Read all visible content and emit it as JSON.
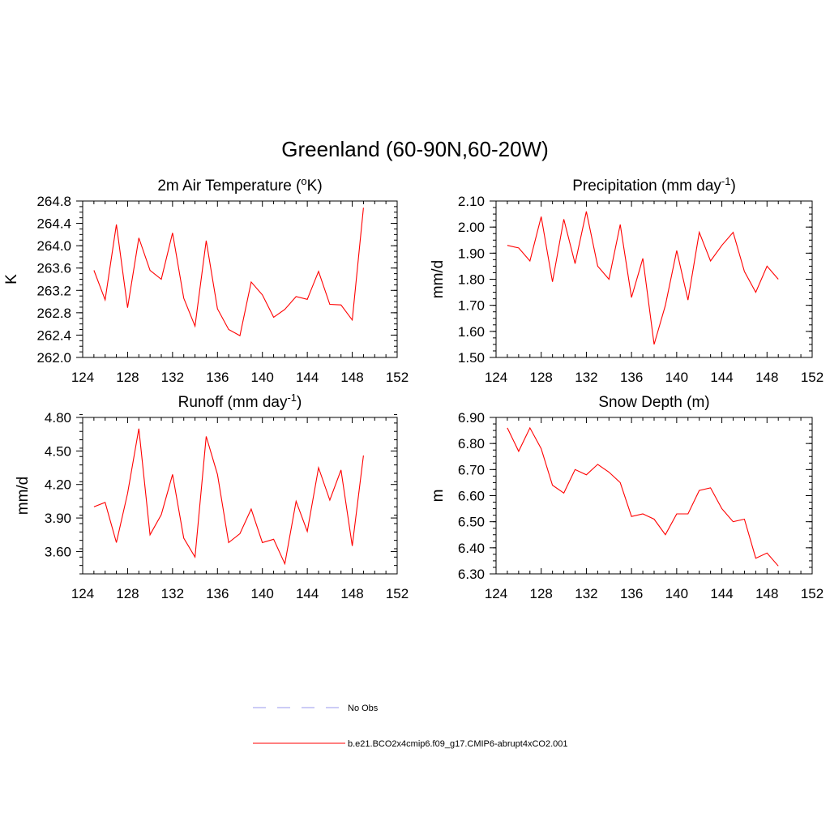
{
  "figure_title": "Greenland (60-90N,60-20W)",
  "legend": [
    {
      "label": "No Obs",
      "color": "#9999ee",
      "dash": true
    },
    {
      "label": "b.e21.BCO2x4cmip6.f09_g17.CMIP6-abrupt4xCO2.001",
      "color": "#ff0000",
      "dash": false
    }
  ],
  "chart_data": [
    {
      "type": "line",
      "title": "2m Air Temperature (",
      "title_sup": "o",
      "title_tail": "K)",
      "ylabel": "K",
      "xlim": [
        124,
        152
      ],
      "ylim": [
        262.0,
        264.8
      ],
      "xticks": [
        124,
        128,
        132,
        136,
        140,
        144,
        148,
        152
      ],
      "xticklabels": [
        "124",
        "128",
        "132",
        "136",
        "140",
        "144",
        "148",
        "152"
      ],
      "yticks": [
        262.0,
        262.4,
        262.8,
        263.2,
        263.6,
        264.0,
        264.4,
        264.8
      ],
      "yticklabels": [
        "262.0",
        "262.4",
        "262.8",
        "263.2",
        "263.6",
        "264.0",
        "264.4",
        "264.8"
      ],
      "yminor_step": 0.1,
      "color": "#ff0000",
      "x": [
        125,
        126,
        127,
        128,
        129,
        130,
        131,
        132,
        133,
        134,
        135,
        136,
        137,
        138,
        139,
        140,
        141,
        142,
        143,
        144,
        145,
        146,
        147,
        148,
        149
      ],
      "y": [
        263.56,
        263.03,
        264.38,
        262.89,
        264.14,
        263.56,
        263.4,
        264.23,
        263.06,
        262.56,
        264.09,
        262.87,
        262.5,
        262.39,
        263.35,
        263.12,
        262.72,
        262.86,
        263.09,
        263.04,
        263.54,
        262.95,
        262.94,
        262.67,
        264.68
      ]
    },
    {
      "type": "line",
      "title": "Precipitation (mm day",
      "title_sup": "-1",
      "title_tail": ")",
      "ylabel": "mm/d",
      "xlim": [
        124,
        152
      ],
      "ylim": [
        1.5,
        2.1
      ],
      "xticks": [
        124,
        128,
        132,
        136,
        140,
        144,
        148,
        152
      ],
      "xticklabels": [
        "124",
        "128",
        "132",
        "136",
        "140",
        "144",
        "148",
        "152"
      ],
      "yticks": [
        1.5,
        1.6,
        1.7,
        1.8,
        1.9,
        2.0,
        2.1
      ],
      "yticklabels": [
        "1.50",
        "1.60",
        "1.70",
        "1.80",
        "1.90",
        "2.00",
        "2.10"
      ],
      "yminor_step": 0.025,
      "color": "#ff0000",
      "x": [
        125,
        126,
        127,
        128,
        129,
        130,
        131,
        132,
        133,
        134,
        135,
        136,
        137,
        138,
        139,
        140,
        141,
        142,
        143,
        144,
        145,
        146,
        147,
        148,
        149
      ],
      "y": [
        1.93,
        1.92,
        1.87,
        2.04,
        1.79,
        2.03,
        1.86,
        2.06,
        1.85,
        1.8,
        2.01,
        1.73,
        1.88,
        1.55,
        1.7,
        1.91,
        1.72,
        1.98,
        1.87,
        1.93,
        1.98,
        1.83,
        1.75,
        1.85,
        1.8
      ]
    },
    {
      "type": "line",
      "title": "Runoff (mm day",
      "title_sup": "-1",
      "title_tail": ")",
      "ylabel": "mm/d",
      "xlim": [
        124,
        152
      ],
      "ylim": [
        3.4,
        4.8
      ],
      "xticks": [
        124,
        128,
        132,
        136,
        140,
        144,
        148,
        152
      ],
      "xticklabels": [
        "124",
        "128",
        "132",
        "136",
        "140",
        "144",
        "148",
        "152"
      ],
      "yticks": [
        3.6,
        3.9,
        4.2,
        4.5,
        4.8
      ],
      "yticklabels": [
        "3.60",
        "3.90",
        "4.20",
        "4.50",
        "4.80"
      ],
      "yminor_step": 0.075,
      "color": "#ff0000",
      "x": [
        125,
        126,
        127,
        128,
        129,
        130,
        131,
        132,
        133,
        134,
        135,
        136,
        137,
        138,
        139,
        140,
        141,
        142,
        143,
        144,
        145,
        146,
        147,
        148,
        149
      ],
      "y": [
        4.0,
        4.04,
        3.68,
        4.12,
        4.7,
        3.75,
        3.93,
        4.29,
        3.72,
        3.55,
        4.63,
        4.29,
        3.68,
        3.76,
        3.98,
        3.68,
        3.71,
        3.49,
        4.05,
        3.78,
        4.35,
        4.06,
        4.33,
        3.65,
        4.46
      ]
    },
    {
      "type": "line",
      "title": "Snow Depth (m)",
      "title_sup": "",
      "title_tail": "",
      "ylabel": "m",
      "xlim": [
        124,
        152
      ],
      "ylim": [
        6.3,
        6.9
      ],
      "xticks": [
        124,
        128,
        132,
        136,
        140,
        144,
        148,
        152
      ],
      "xticklabels": [
        "124",
        "128",
        "132",
        "136",
        "140",
        "144",
        "148",
        "152"
      ],
      "yticks": [
        6.3,
        6.4,
        6.5,
        6.6,
        6.7,
        6.8,
        6.9
      ],
      "yticklabels": [
        "6.30",
        "6.40",
        "6.50",
        "6.60",
        "6.70",
        "6.80",
        "6.90"
      ],
      "yminor_step": 0.025,
      "color": "#ff0000",
      "x": [
        125,
        126,
        127,
        128,
        129,
        130,
        131,
        132,
        133,
        134,
        135,
        136,
        137,
        138,
        139,
        140,
        141,
        142,
        143,
        144,
        145,
        146,
        147,
        148,
        149
      ],
      "y": [
        6.86,
        6.77,
        6.86,
        6.78,
        6.64,
        6.61,
        6.7,
        6.68,
        6.72,
        6.69,
        6.65,
        6.52,
        6.53,
        6.51,
        6.45,
        6.53,
        6.53,
        6.62,
        6.63,
        6.55,
        6.5,
        6.51,
        6.36,
        6.38,
        6.33
      ]
    }
  ]
}
